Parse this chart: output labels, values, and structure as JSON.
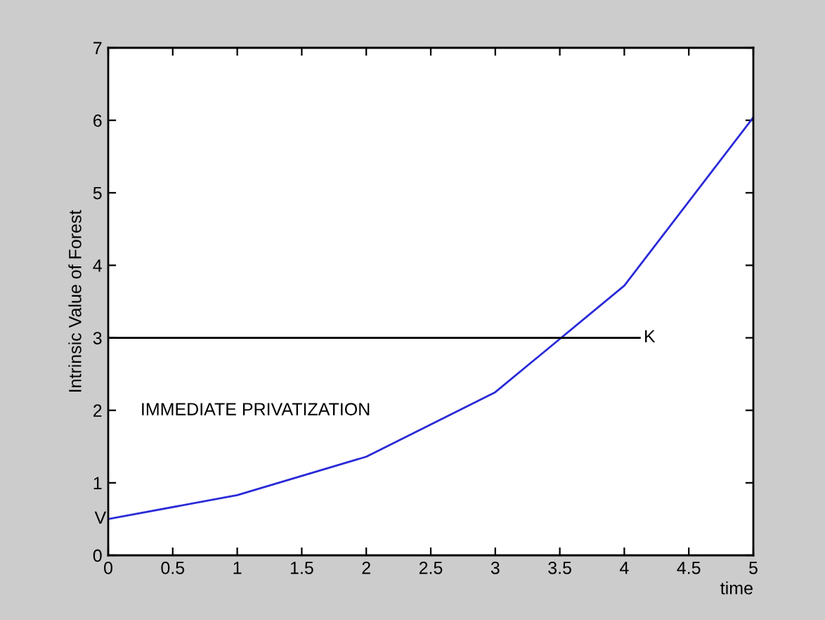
{
  "chart_data": {
    "type": "line",
    "xlabel": "time",
    "ylabel": "Intrinsic Value of Forest",
    "x": [
      0,
      1,
      2,
      3,
      4,
      5
    ],
    "series": [
      {
        "values": [
          0.5,
          0.83,
          1.36,
          2.25,
          3.72,
          6.04
        ],
        "color": "#2a2ad8"
      },
      {
        "name": "K",
        "x": [
          0,
          4.12
        ],
        "values": [
          3,
          3
        ],
        "color": "#000000"
      }
    ],
    "xlim": [
      0,
      5
    ],
    "ylim": [
      0,
      7
    ],
    "xticks": [
      0,
      0.5,
      1,
      1.5,
      2,
      2.5,
      3,
      3.5,
      4,
      4.5,
      5
    ],
    "yticks": [
      0,
      1,
      2,
      3,
      4,
      5,
      6,
      7
    ],
    "annotations": [
      {
        "text": "V",
        "x": 0,
        "y": 0.5
      },
      "IMMEDIATE PRIVATIZATION"
    ],
    "grid": false,
    "marker": "none",
    "line_style": "solid"
  }
}
